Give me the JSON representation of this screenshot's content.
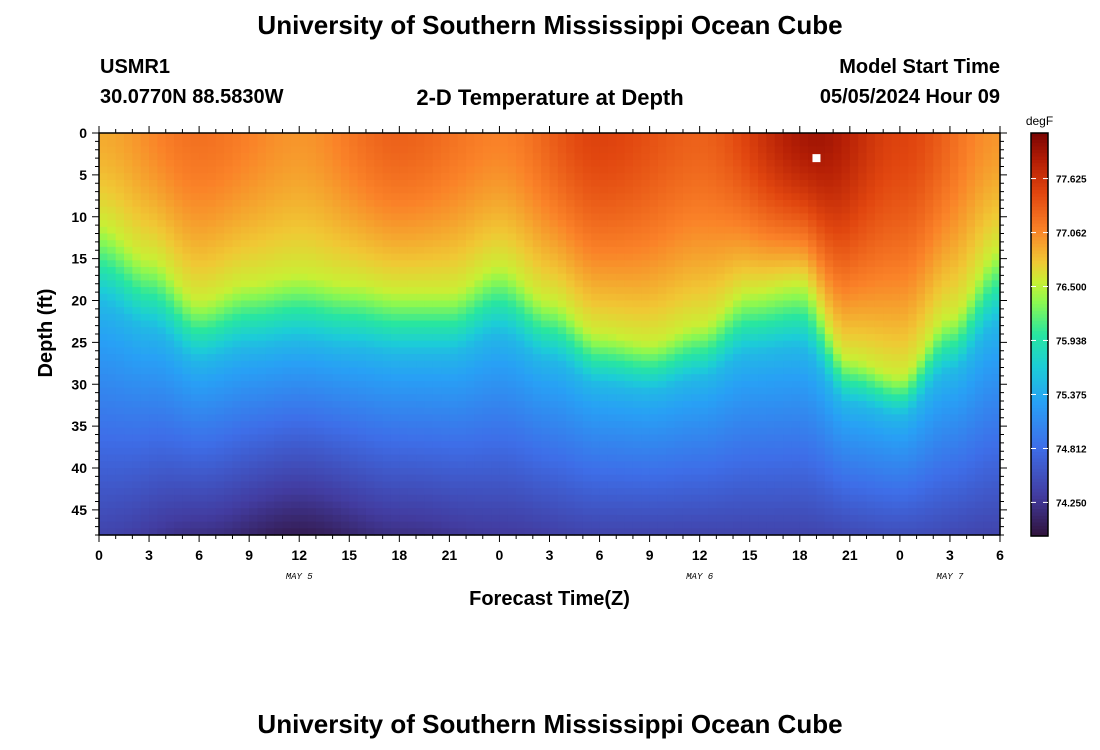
{
  "header": {
    "title": "University of Southern Mississippi Ocean Cube",
    "station_id": "USMR1",
    "station_location": "30.0770N  88.5830W",
    "plot_title": "2-D Temperature at Depth",
    "model_start_label": "Model Start Time",
    "model_start_value": "05/05/2024 Hour 09"
  },
  "footer": {
    "title": "University of Southern Mississippi Ocean Cube"
  },
  "chart_data": {
    "type": "heatmap",
    "title": "2-D Temperature at Depth",
    "xlabel": "Forecast Time(Z)",
    "ylabel": "Depth (ft)",
    "colorbar_label": "degF",
    "x_hours_range": [
      0,
      54
    ],
    "y_range_ft": [
      0,
      48
    ],
    "y_ticks": [
      "0",
      "5",
      "10",
      "15",
      "20",
      "25",
      "30",
      "35",
      "40",
      "45"
    ],
    "x_ticks": [
      "0",
      "3",
      "6",
      "9",
      "12",
      "15",
      "18",
      "21",
      "0",
      "3",
      "6",
      "9",
      "12",
      "15",
      "18",
      "21",
      "0",
      "3",
      "6"
    ],
    "day_labels": [
      {
        "label": "MAY 5",
        "hour": 12
      },
      {
        "label": "MAY 6",
        "hour": 36
      },
      {
        "label": "MAY 7",
        "hour": 51
      }
    ],
    "colorbar_ticks": [
      "77.625",
      "77.062",
      "76.500",
      "75.938",
      "75.375",
      "74.812",
      "74.250"
    ],
    "colorbar_range": [
      73.9,
      78.1
    ],
    "thermocline_depth_ft": [
      {
        "hour": 0,
        "depth": 11
      },
      {
        "hour": 3,
        "depth": 15
      },
      {
        "hour": 6,
        "depth": 20
      },
      {
        "hour": 9,
        "depth": 18
      },
      {
        "hour": 12,
        "depth": 17
      },
      {
        "hour": 15,
        "depth": 18
      },
      {
        "hour": 18,
        "depth": 19
      },
      {
        "hour": 21,
        "depth": 19
      },
      {
        "hour": 24,
        "depth": 16
      },
      {
        "hour": 27,
        "depth": 20
      },
      {
        "hour": 30,
        "depth": 24
      },
      {
        "hour": 33,
        "depth": 25
      },
      {
        "hour": 36,
        "depth": 23
      },
      {
        "hour": 39,
        "depth": 19
      },
      {
        "hour": 42,
        "depth": 18
      },
      {
        "hour": 45,
        "depth": 27
      },
      {
        "hour": 48,
        "depth": 29
      },
      {
        "hour": 51,
        "depth": 22
      },
      {
        "hour": 54,
        "depth": 14
      }
    ],
    "surface_temp_degF": [
      {
        "hour": 0,
        "value": 76.9
      },
      {
        "hour": 6,
        "value": 77.2
      },
      {
        "hour": 12,
        "value": 77.0
      },
      {
        "hour": 18,
        "value": 77.3
      },
      {
        "hour": 24,
        "value": 77.1
      },
      {
        "hour": 30,
        "value": 77.5
      },
      {
        "hour": 36,
        "value": 77.3
      },
      {
        "hour": 43,
        "value": 77.9
      },
      {
        "hour": 48,
        "value": 77.5
      },
      {
        "hour": 54,
        "value": 77.0
      }
    ],
    "bottom_temp_degF": [
      {
        "hour": 0,
        "value": 74.4
      },
      {
        "hour": 6,
        "value": 74.2
      },
      {
        "hour": 12,
        "value": 74.0
      },
      {
        "hour": 18,
        "value": 74.2
      },
      {
        "hour": 24,
        "value": 74.3
      },
      {
        "hour": 30,
        "value": 74.4
      },
      {
        "hour": 36,
        "value": 74.4
      },
      {
        "hour": 42,
        "value": 74.4
      },
      {
        "hour": 48,
        "value": 74.5
      },
      {
        "hour": 54,
        "value": 74.4
      }
    ],
    "marker": {
      "hour": 43,
      "depth": 3
    }
  }
}
